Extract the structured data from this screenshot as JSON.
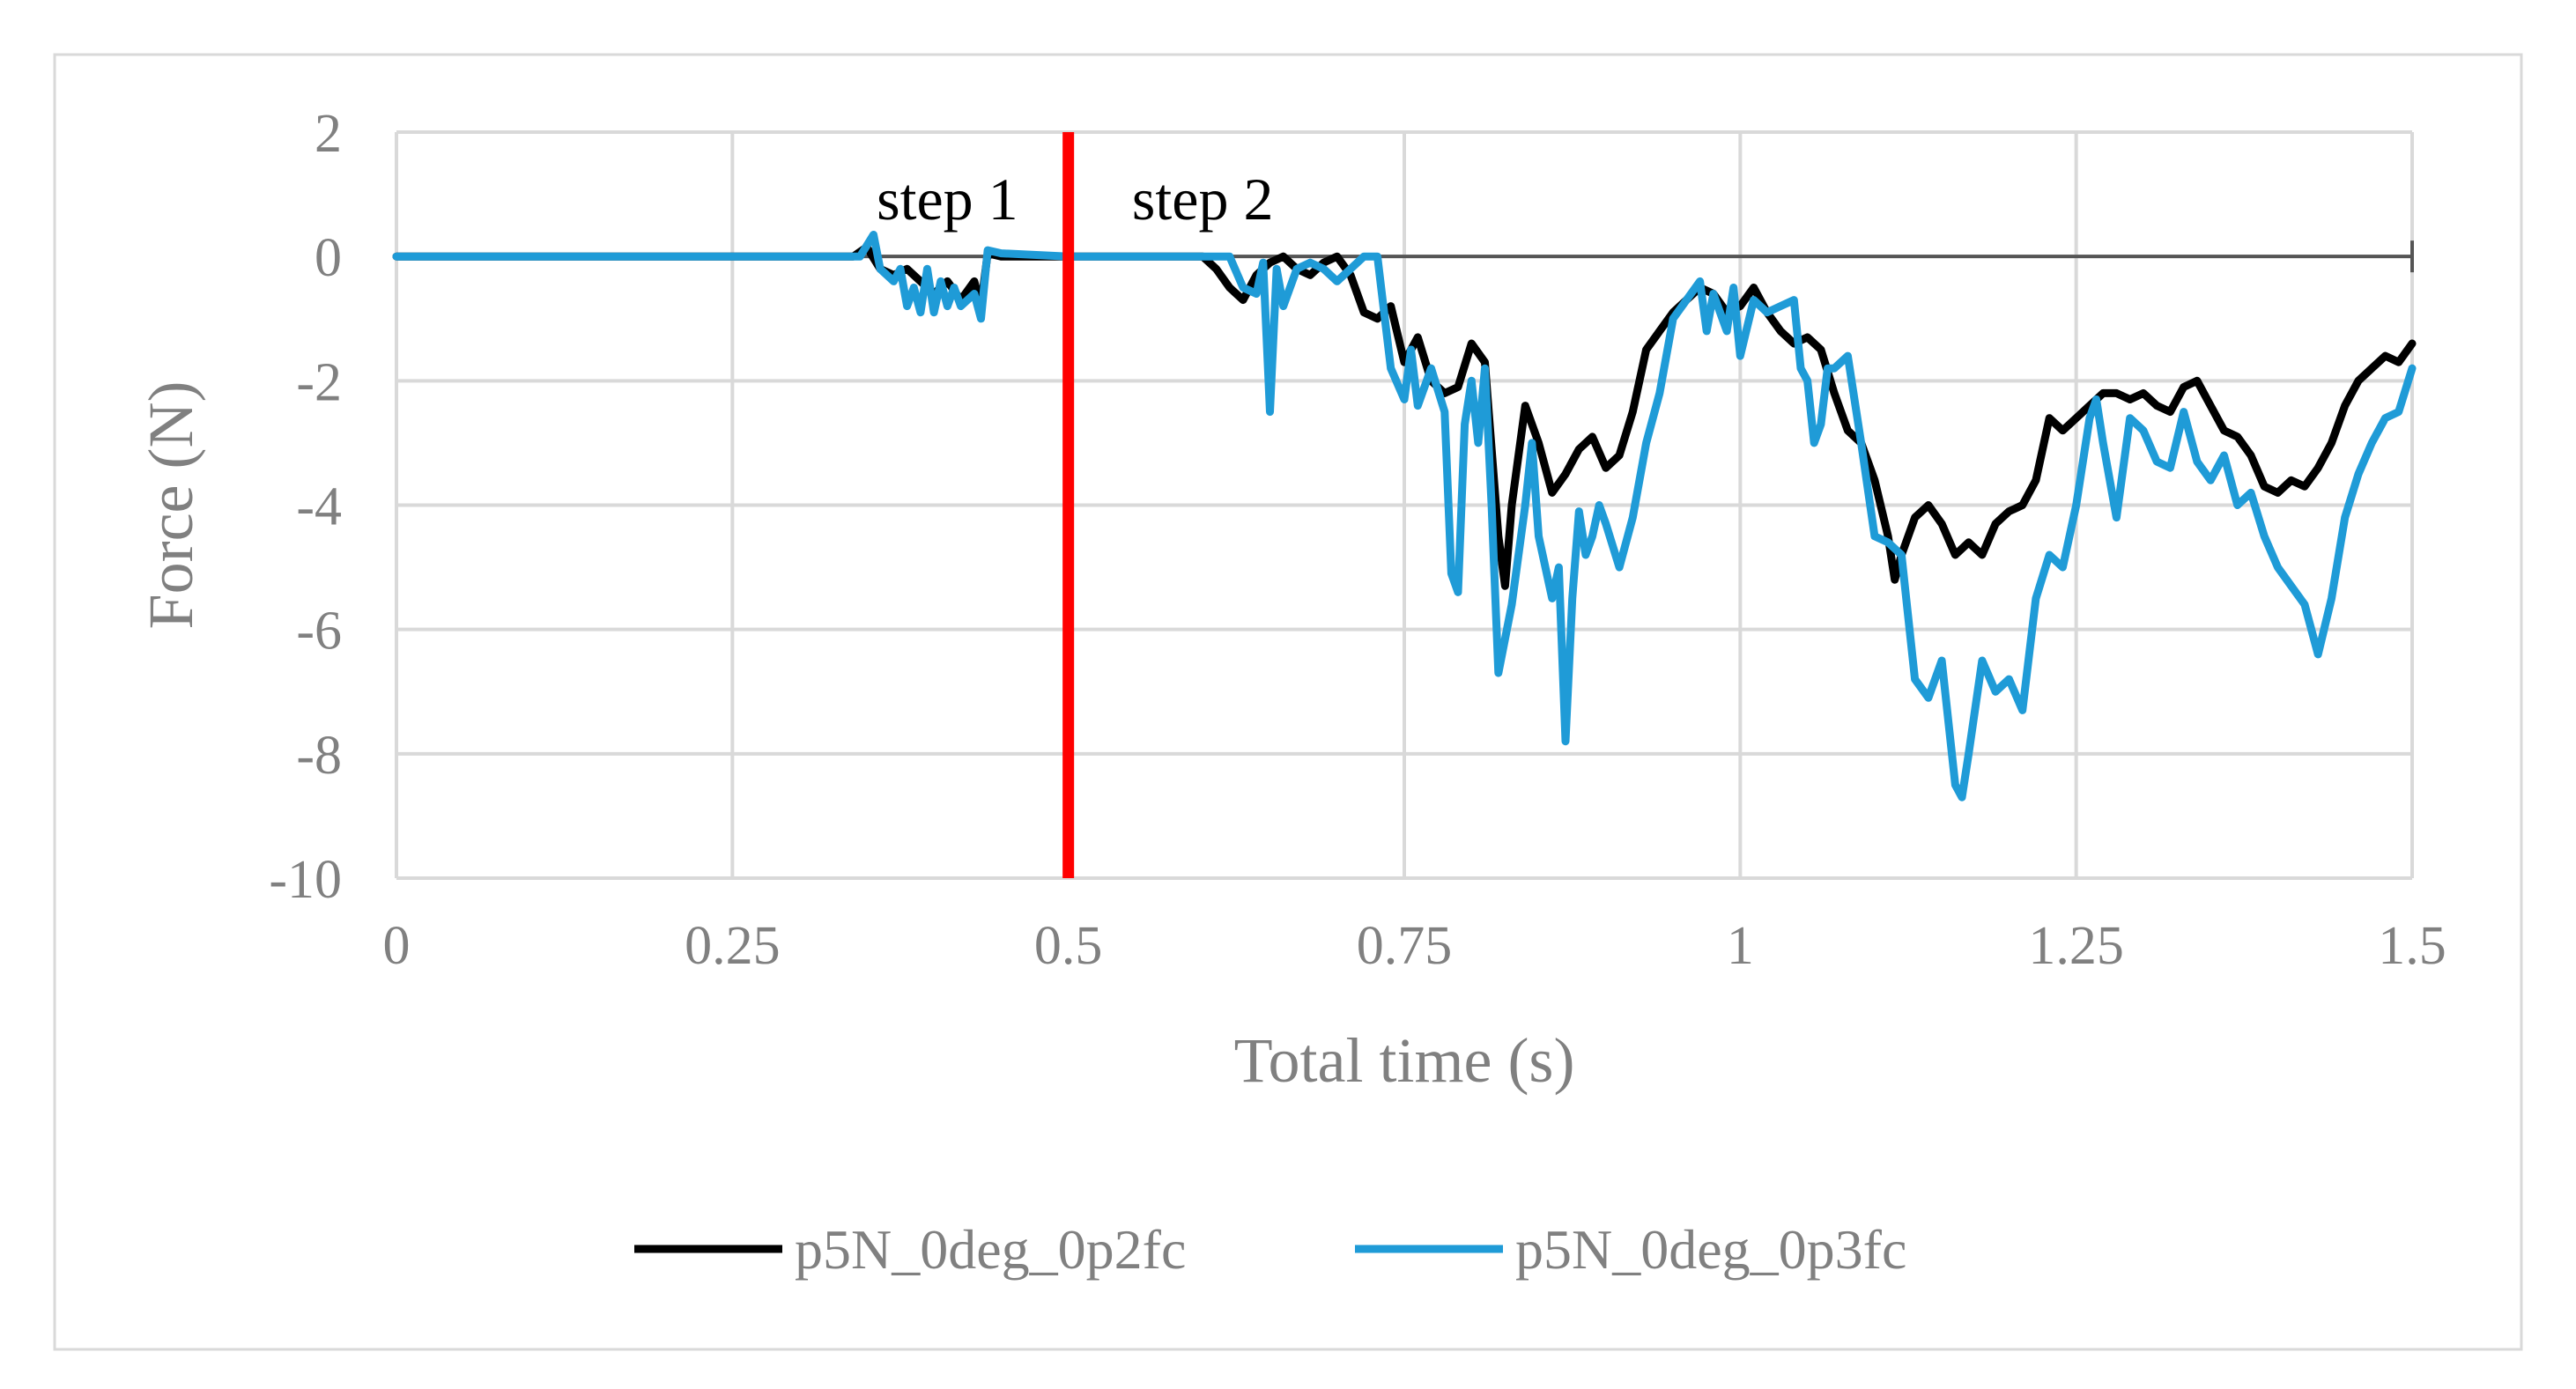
{
  "chart_data": {
    "type": "line",
    "xlabel": "Total time (s)",
    "ylabel": "Force (N)",
    "xlim": [
      0,
      1.5
    ],
    "ylim": [
      -10,
      2
    ],
    "x_ticks": [
      0,
      0.25,
      0.5,
      0.75,
      1,
      1.25,
      1.5
    ],
    "x_tick_labels": [
      "0",
      "0.25",
      "0.5",
      "0.75",
      "1",
      "1.25",
      "1.5"
    ],
    "y_ticks": [
      2,
      0,
      -2,
      -4,
      -6,
      -8,
      -10
    ],
    "y_tick_labels": [
      "2",
      "0",
      "-2",
      "-4",
      "-6",
      "-8",
      "-10"
    ],
    "grid": true,
    "legend_position": "bottom",
    "annotations": [
      {
        "text": "step 1",
        "x": 0.41,
        "y": 0.6
      },
      {
        "text": "step 2",
        "x": 0.6,
        "y": 0.6
      }
    ],
    "vline": {
      "x": 0.5,
      "color": "#ff0000"
    },
    "zero_line": {
      "y": 0,
      "color": "#555555"
    },
    "colors": {
      "series1": "#000000",
      "series2": "#1f9bd7",
      "grid": "#d9d9d9",
      "frame": "#d9d9d9",
      "text": "#808080"
    },
    "series": [
      {
        "name": "p5N_0deg_0p2fc",
        "color": "#000000",
        "points": [
          [
            0,
            0
          ],
          [
            0.34,
            0
          ],
          [
            0.35,
            0.15
          ],
          [
            0.36,
            -0.2
          ],
          [
            0.37,
            -0.3
          ],
          [
            0.38,
            -0.2
          ],
          [
            0.39,
            -0.4
          ],
          [
            0.4,
            -0.6
          ],
          [
            0.41,
            -0.4
          ],
          [
            0.42,
            -0.7
          ],
          [
            0.43,
            -0.4
          ],
          [
            0.435,
            -0.8
          ],
          [
            0.44,
            0.05
          ],
          [
            0.45,
            0
          ],
          [
            0.5,
            0
          ],
          [
            0.6,
            0
          ],
          [
            0.61,
            -0.2
          ],
          [
            0.62,
            -0.5
          ],
          [
            0.63,
            -0.7
          ],
          [
            0.64,
            -0.3
          ],
          [
            0.65,
            -0.1
          ],
          [
            0.66,
            0
          ],
          [
            0.67,
            -0.2
          ],
          [
            0.68,
            -0.3
          ],
          [
            0.69,
            -0.1
          ],
          [
            0.7,
            0
          ],
          [
            0.71,
            -0.3
          ],
          [
            0.72,
            -0.9
          ],
          [
            0.73,
            -1.0
          ],
          [
            0.74,
            -0.8
          ],
          [
            0.75,
            -1.7
          ],
          [
            0.76,
            -1.3
          ],
          [
            0.77,
            -2.0
          ],
          [
            0.78,
            -2.2
          ],
          [
            0.79,
            -2.1
          ],
          [
            0.8,
            -1.4
          ],
          [
            0.81,
            -1.7
          ],
          [
            0.82,
            -4.5
          ],
          [
            0.825,
            -5.3
          ],
          [
            0.83,
            -4.0
          ],
          [
            0.84,
            -2.4
          ],
          [
            0.85,
            -3.0
          ],
          [
            0.86,
            -3.8
          ],
          [
            0.87,
            -3.5
          ],
          [
            0.88,
            -3.1
          ],
          [
            0.89,
            -2.9
          ],
          [
            0.9,
            -3.4
          ],
          [
            0.91,
            -3.2
          ],
          [
            0.92,
            -2.5
          ],
          [
            0.93,
            -1.5
          ],
          [
            0.94,
            -1.2
          ],
          [
            0.95,
            -0.9
          ],
          [
            0.96,
            -0.7
          ],
          [
            0.97,
            -0.5
          ],
          [
            0.98,
            -0.6
          ],
          [
            0.99,
            -0.9
          ],
          [
            1.0,
            -0.8
          ],
          [
            1.01,
            -0.5
          ],
          [
            1.02,
            -0.9
          ],
          [
            1.03,
            -1.2
          ],
          [
            1.04,
            -1.4
          ],
          [
            1.05,
            -1.3
          ],
          [
            1.06,
            -1.5
          ],
          [
            1.07,
            -2.2
          ],
          [
            1.08,
            -2.8
          ],
          [
            1.09,
            -3.0
          ],
          [
            1.1,
            -3.6
          ],
          [
            1.11,
            -4.5
          ],
          [
            1.115,
            -5.2
          ],
          [
            1.12,
            -4.8
          ],
          [
            1.13,
            -4.2
          ],
          [
            1.14,
            -4.0
          ],
          [
            1.15,
            -4.3
          ],
          [
            1.16,
            -4.8
          ],
          [
            1.17,
            -4.6
          ],
          [
            1.18,
            -4.8
          ],
          [
            1.19,
            -4.3
          ],
          [
            1.2,
            -4.1
          ],
          [
            1.21,
            -4.0
          ],
          [
            1.22,
            -3.6
          ],
          [
            1.23,
            -2.6
          ],
          [
            1.24,
            -2.8
          ],
          [
            1.25,
            -2.6
          ],
          [
            1.26,
            -2.4
          ],
          [
            1.27,
            -2.2
          ],
          [
            1.28,
            -2.2
          ],
          [
            1.29,
            -2.3
          ],
          [
            1.3,
            -2.2
          ],
          [
            1.31,
            -2.4
          ],
          [
            1.32,
            -2.5
          ],
          [
            1.33,
            -2.1
          ],
          [
            1.34,
            -2.0
          ],
          [
            1.35,
            -2.4
          ],
          [
            1.36,
            -2.8
          ],
          [
            1.37,
            -2.9
          ],
          [
            1.38,
            -3.2
          ],
          [
            1.39,
            -3.7
          ],
          [
            1.4,
            -3.8
          ],
          [
            1.41,
            -3.6
          ],
          [
            1.42,
            -3.7
          ],
          [
            1.43,
            -3.4
          ],
          [
            1.44,
            -3.0
          ],
          [
            1.45,
            -2.4
          ],
          [
            1.46,
            -2.0
          ],
          [
            1.47,
            -1.8
          ],
          [
            1.48,
            -1.6
          ],
          [
            1.49,
            -1.7
          ],
          [
            1.5,
            -1.4
          ]
        ]
      },
      {
        "name": "p5N_0deg_0p3fc",
        "color": "#1f9bd7",
        "points": [
          [
            0,
            0
          ],
          [
            0.345,
            0
          ],
          [
            0.355,
            0.35
          ],
          [
            0.36,
            -0.2
          ],
          [
            0.37,
            -0.4
          ],
          [
            0.375,
            -0.2
          ],
          [
            0.38,
            -0.8
          ],
          [
            0.385,
            -0.5
          ],
          [
            0.39,
            -0.9
          ],
          [
            0.395,
            -0.2
          ],
          [
            0.4,
            -0.9
          ],
          [
            0.405,
            -0.4
          ],
          [
            0.41,
            -0.8
          ],
          [
            0.415,
            -0.5
          ],
          [
            0.42,
            -0.8
          ],
          [
            0.43,
            -0.6
          ],
          [
            0.435,
            -1.0
          ],
          [
            0.44,
            0.1
          ],
          [
            0.45,
            0.05
          ],
          [
            0.5,
            0
          ],
          [
            0.62,
            0
          ],
          [
            0.63,
            -0.5
          ],
          [
            0.64,
            -0.6
          ],
          [
            0.645,
            -0.1
          ],
          [
            0.65,
            -2.5
          ],
          [
            0.655,
            -0.2
          ],
          [
            0.66,
            -0.8
          ],
          [
            0.67,
            -0.2
          ],
          [
            0.68,
            -0.1
          ],
          [
            0.69,
            -0.2
          ],
          [
            0.7,
            -0.4
          ],
          [
            0.71,
            -0.2
          ],
          [
            0.72,
            0
          ],
          [
            0.73,
            0
          ],
          [
            0.74,
            -1.8
          ],
          [
            0.75,
            -2.3
          ],
          [
            0.755,
            -1.5
          ],
          [
            0.76,
            -2.4
          ],
          [
            0.77,
            -1.8
          ],
          [
            0.78,
            -2.5
          ],
          [
            0.785,
            -5.1
          ],
          [
            0.79,
            -5.4
          ],
          [
            0.795,
            -2.7
          ],
          [
            0.8,
            -2.0
          ],
          [
            0.805,
            -3.0
          ],
          [
            0.81,
            -1.8
          ],
          [
            0.815,
            -4.0
          ],
          [
            0.82,
            -6.7
          ],
          [
            0.83,
            -5.6
          ],
          [
            0.84,
            -4.0
          ],
          [
            0.845,
            -3.0
          ],
          [
            0.85,
            -4.5
          ],
          [
            0.86,
            -5.5
          ],
          [
            0.865,
            -5.0
          ],
          [
            0.87,
            -7.8
          ],
          [
            0.875,
            -5.5
          ],
          [
            0.88,
            -4.1
          ],
          [
            0.885,
            -4.8
          ],
          [
            0.89,
            -4.5
          ],
          [
            0.895,
            -4.0
          ],
          [
            0.9,
            -4.3
          ],
          [
            0.91,
            -5.0
          ],
          [
            0.92,
            -4.2
          ],
          [
            0.93,
            -3.0
          ],
          [
            0.94,
            -2.2
          ],
          [
            0.95,
            -1.0
          ],
          [
            0.96,
            -0.7
          ],
          [
            0.97,
            -0.4
          ],
          [
            0.975,
            -1.2
          ],
          [
            0.98,
            -0.6
          ],
          [
            0.99,
            -1.2
          ],
          [
            0.995,
            -0.5
          ],
          [
            1.0,
            -1.6
          ],
          [
            1.01,
            -0.7
          ],
          [
            1.02,
            -0.9
          ],
          [
            1.03,
            -0.8
          ],
          [
            1.04,
            -0.7
          ],
          [
            1.045,
            -1.8
          ],
          [
            1.05,
            -2.0
          ],
          [
            1.055,
            -3.0
          ],
          [
            1.06,
            -2.7
          ],
          [
            1.065,
            -1.8
          ],
          [
            1.07,
            -1.8
          ],
          [
            1.08,
            -1.6
          ],
          [
            1.09,
            -3.0
          ],
          [
            1.1,
            -4.5
          ],
          [
            1.11,
            -4.6
          ],
          [
            1.12,
            -4.8
          ],
          [
            1.13,
            -6.8
          ],
          [
            1.14,
            -7.1
          ],
          [
            1.15,
            -6.5
          ],
          [
            1.16,
            -8.5
          ],
          [
            1.165,
            -8.7
          ],
          [
            1.17,
            -8.0
          ],
          [
            1.18,
            -6.5
          ],
          [
            1.19,
            -7.0
          ],
          [
            1.2,
            -6.8
          ],
          [
            1.21,
            -7.3
          ],
          [
            1.22,
            -5.5
          ],
          [
            1.23,
            -4.8
          ],
          [
            1.24,
            -5.0
          ],
          [
            1.25,
            -4.0
          ],
          [
            1.26,
            -2.6
          ],
          [
            1.265,
            -2.3
          ],
          [
            1.27,
            -3.0
          ],
          [
            1.28,
            -4.2
          ],
          [
            1.29,
            -2.6
          ],
          [
            1.3,
            -2.8
          ],
          [
            1.31,
            -3.3
          ],
          [
            1.32,
            -3.4
          ],
          [
            1.33,
            -2.5
          ],
          [
            1.34,
            -3.3
          ],
          [
            1.35,
            -3.6
          ],
          [
            1.36,
            -3.2
          ],
          [
            1.37,
            -4.0
          ],
          [
            1.38,
            -3.8
          ],
          [
            1.39,
            -4.5
          ],
          [
            1.4,
            -5.0
          ],
          [
            1.41,
            -5.3
          ],
          [
            1.42,
            -5.6
          ],
          [
            1.43,
            -6.4
          ],
          [
            1.44,
            -5.5
          ],
          [
            1.45,
            -4.2
          ],
          [
            1.46,
            -3.5
          ],
          [
            1.47,
            -3.0
          ],
          [
            1.48,
            -2.6
          ],
          [
            1.49,
            -2.5
          ],
          [
            1.5,
            -1.8
          ]
        ]
      }
    ]
  }
}
